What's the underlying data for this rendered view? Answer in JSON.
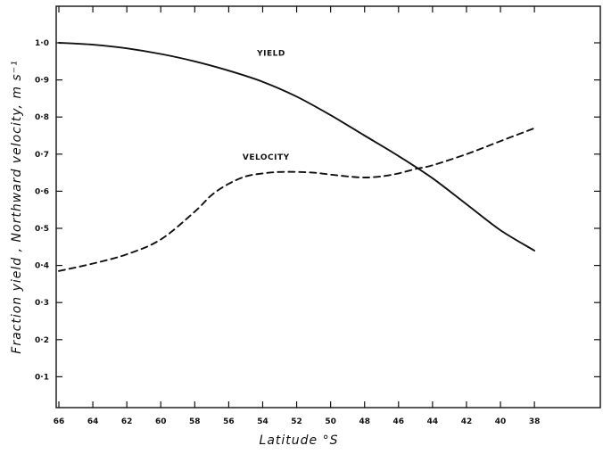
{
  "chart_data": {
    "type": "line",
    "title": "",
    "xlabel": "Latitude  °S",
    "ylabel": "Fraction yield ,  Northward velocity,  m s⁻¹",
    "xlim": [
      66,
      36
    ],
    "ylim": [
      0,
      1.05
    ],
    "x_ticks": [
      "66",
      "64",
      "62",
      "60",
      "58",
      "56",
      "54",
      "52",
      "50",
      "48",
      "46",
      "44",
      "42",
      "40",
      "38"
    ],
    "y_ticks": [
      "0·1",
      "0·2",
      "0·3",
      "0·4",
      "0·5",
      "0·6",
      "0·7",
      "0·8",
      "0·9",
      "1·0"
    ],
    "grid": false,
    "legend": "none",
    "series": [
      {
        "name": "YIELD",
        "style": "solid",
        "x": [
          66,
          64,
          62,
          60,
          58,
          56,
          54,
          52,
          50,
          48,
          46,
          44,
          42,
          40,
          38
        ],
        "values": [
          1.0,
          0.995,
          0.985,
          0.97,
          0.95,
          0.925,
          0.895,
          0.855,
          0.805,
          0.75,
          0.695,
          0.635,
          0.565,
          0.495,
          0.44
        ]
      },
      {
        "name": "VELOCITY",
        "style": "dashed",
        "x": [
          66,
          64,
          62,
          60,
          58,
          57,
          56,
          55,
          54,
          53,
          52,
          51,
          50,
          49,
          48,
          47,
          46,
          45,
          44,
          42,
          40,
          38
        ],
        "values": [
          0.385,
          0.405,
          0.43,
          0.47,
          0.545,
          0.59,
          0.62,
          0.64,
          0.648,
          0.652,
          0.652,
          0.65,
          0.645,
          0.64,
          0.637,
          0.64,
          0.648,
          0.66,
          0.67,
          0.7,
          0.735,
          0.77
        ]
      }
    ],
    "annotations": [
      {
        "text": "YIELD",
        "x": 53.5,
        "y": 0.965
      },
      {
        "text": "VELOCITY",
        "x": 53.8,
        "y": 0.685
      }
    ]
  }
}
